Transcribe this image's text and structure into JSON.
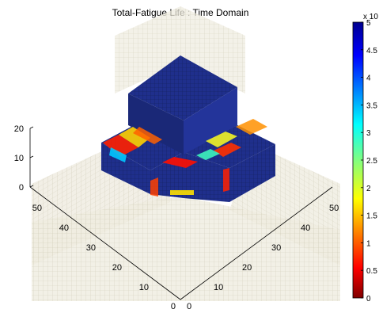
{
  "chart_data": {
    "type": "heatmap",
    "title": "Total-Fatigue Life : Time Domain",
    "z_ticks": [
      "0",
      "10",
      "20"
    ],
    "x_ticks": [
      "0",
      "10",
      "20",
      "30",
      "40",
      "50"
    ],
    "y_ticks": [
      "0",
      "10",
      "20",
      "30",
      "40",
      "50"
    ],
    "colorbar": {
      "exponent_label": "x 10",
      "ticks": [
        "0",
        "0.5",
        "1",
        "1.5",
        "2",
        "2.5",
        "3",
        "3.5",
        "4",
        "4.5",
        "5"
      ],
      "range": [
        0,
        5
      ],
      "colormap": "jet",
      "colors": [
        "#00008f",
        "#0000ff",
        "#0080ff",
        "#00ffff",
        "#80ff80",
        "#ffff00",
        "#ff8000",
        "#ff0000",
        "#800000"
      ]
    },
    "mesh_color": "#d8d4c0",
    "model_color": "#1f2f8c"
  }
}
